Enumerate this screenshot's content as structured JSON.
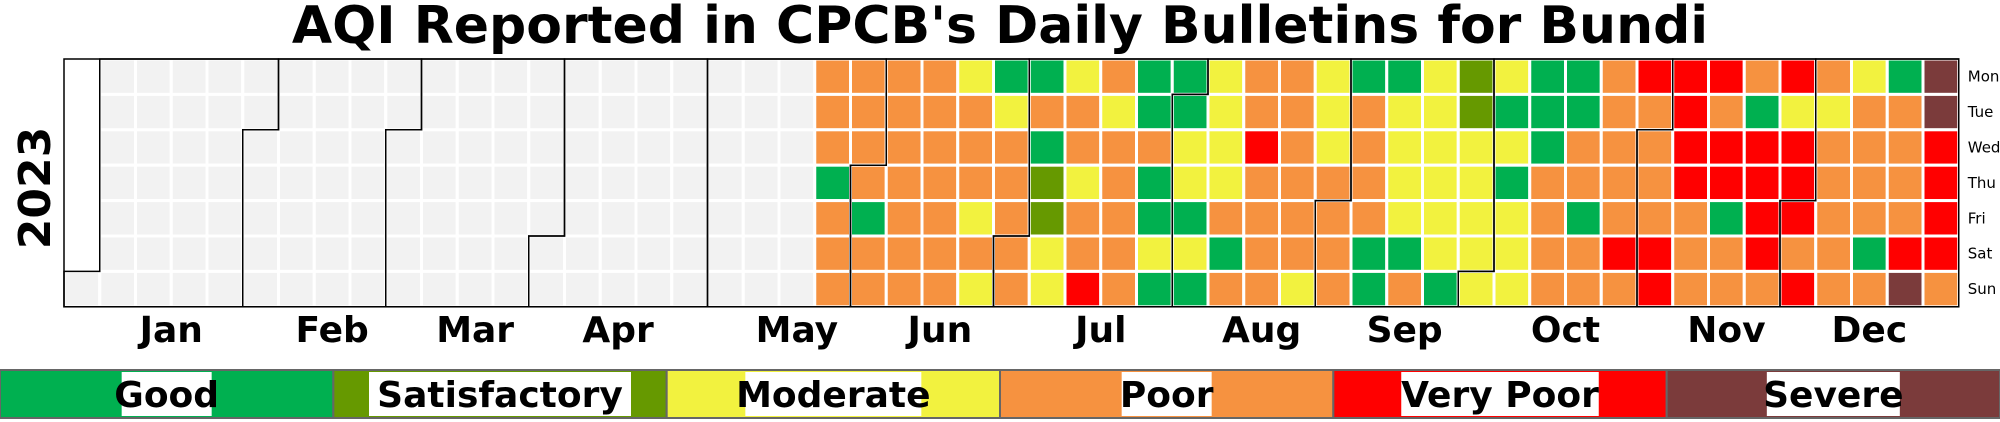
{
  "chart_data": {
    "type": "heatmap",
    "title": "AQI Reported in CPCB's Daily Bulletins for Bundi",
    "year": "2023",
    "months": [
      "Jan",
      "Feb",
      "Mar",
      "Apr",
      "May",
      "Jun",
      "Jul",
      "Aug",
      "Sep",
      "Oct",
      "Nov",
      "Dec"
    ],
    "days": [
      "Mon",
      "Tue",
      "Wed",
      "Thu",
      "Fri",
      "Sat",
      "Sun"
    ],
    "first_weekday_index": 6,
    "categories": [
      {
        "label": "Good",
        "color": "#00b050"
      },
      {
        "label": "Satisfactory",
        "color": "#669900"
      },
      {
        "label": "Moderate",
        "color": "#f2f23f"
      },
      {
        "label": "Poor",
        "color": "#f69240"
      },
      {
        "label": "Very Poor",
        "color": "#ff0000"
      },
      {
        "label": "Severe",
        "color": "#7b3b3b"
      }
    ],
    "no_data_color": "#f2f2f2",
    "week_rows": [
      "NNNNNNN",
      "NNNNNNN",
      "NNNNNNN",
      "NNNNNNN",
      "NNNNNNN",
      "NNNNNNN",
      "NNNNNNN",
      "NNNNNNN",
      "NNNNNNN",
      "NNNNNNN",
      "NNNNNNN",
      "NNNNNNN",
      "NNNNNNN",
      "NNNNNNN",
      "NNNNNNN",
      "NNNNNNN",
      "NNNNNNN",
      "NNNNNNN",
      "NNNNNNN",
      "NNNNNNN",
      "NNNNNNN",
      "PPPGPPP",
      "PPPPGPP",
      "PPPPPPP",
      "PPPPPPP",
      "MPPPMPM",
      "GMPPPPP",
      "GPGSSMM",
      "MPPMPPV",
      "PMPPPPP",
      "GGPGGMG",
      "GGMMGMG",
      "MMMMPGP",
      "PPVPPPP",
      "PPPPPPM",
      "MMMPPPP",
      "GPPPPGG",
      "GMMMMGP",
      "MMMMMMG",
      "SSMMMMM",
      "MGMGMMM",
      "GGGPPPP",
      "GGPPGPP",
      "PPPPPVP",
      "VPPPPVV",
      "VVVVPPP",
      "VPVVGPP",
      "PGVVVVP",
      "VMVVVPV",
      "PMPPPPP",
      "MPPPPGP",
      "GPPPPVE",
      "EEVVVVP"
    ]
  }
}
